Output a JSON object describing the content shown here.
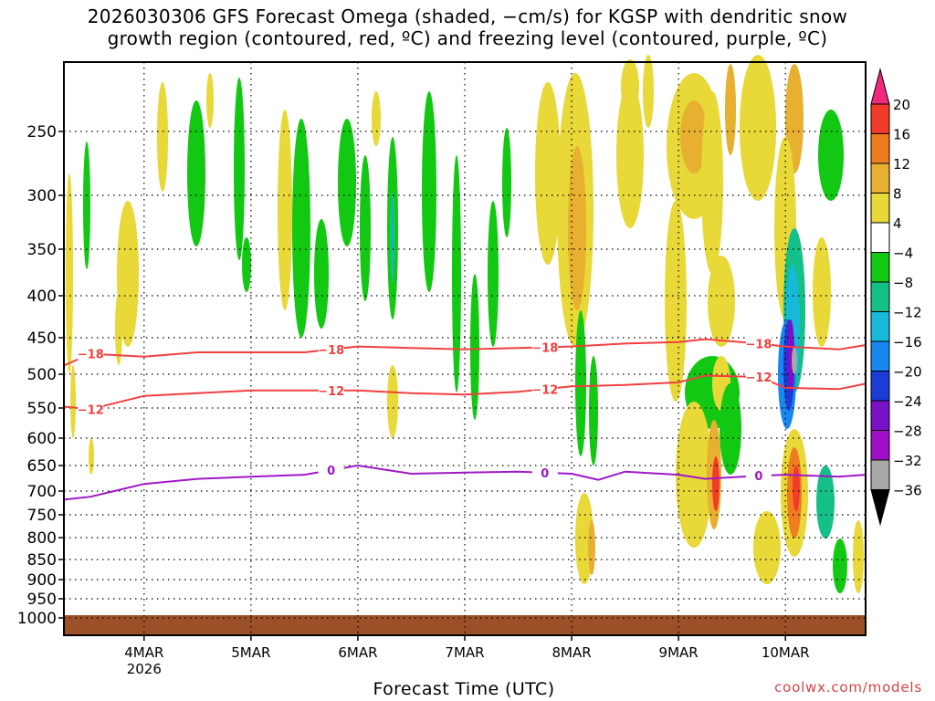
{
  "title": {
    "line1": "2026030306 GFS Forecast Omega (shaded, −cm/s) for KGSP with dendritic snow",
    "line2": "growth region (contoured, red, ºC) and freezing level (contoured, purple, ºC)"
  },
  "credit": "coolwx.com/models",
  "chart_data": {
    "type": "heatmap",
    "xlabel": "Forecast Time (UTC)",
    "x_range_days": [
      "2026-03-03T06",
      "2026-03-10T18"
    ],
    "x_ticks": [
      {
        "label": "4MAR",
        "sub": "2026",
        "value": "2026-03-04T00"
      },
      {
        "label": "5MAR",
        "sub": "",
        "value": "2026-03-05T00"
      },
      {
        "label": "6MAR",
        "sub": "",
        "value": "2026-03-06T00"
      },
      {
        "label": "7MAR",
        "sub": "",
        "value": "2026-03-07T00"
      },
      {
        "label": "8MAR",
        "sub": "",
        "value": "2026-03-08T00"
      },
      {
        "label": "9MAR",
        "sub": "",
        "value": "2026-03-09T00"
      },
      {
        "label": "10MAR",
        "sub": "",
        "value": "2026-03-10T00"
      }
    ],
    "y_axis": "pressure (hPa), reversed",
    "y_ticks": [
      250,
      300,
      350,
      400,
      450,
      500,
      550,
      600,
      650,
      700,
      750,
      800,
      850,
      900,
      950,
      1000
    ],
    "grid": true,
    "colorbar": {
      "labels": [
        "20",
        "16",
        "12",
        "8",
        "4",
        "−4",
        "−8",
        "−12",
        "−16",
        "−20",
        "−24",
        "−28",
        "−32",
        "−36"
      ],
      "colors": [
        "#f0287e",
        "#f03c28",
        "#f07c20",
        "#e8b030",
        "#e8d838",
        "#ffffff",
        "#12c812",
        "#14c088",
        "#18b8d8",
        "#1888f0",
        "#1c3cd8",
        "#7a10c8",
        "#a010c8",
        "#a8a8a8",
        "#000000"
      ]
    },
    "contours": [
      {
        "label": "−18",
        "color": "#f04040",
        "points": [
          [
            "2026-03-03T06",
            488
          ],
          [
            "2026-03-03T12",
            472
          ],
          [
            "2026-03-04T00",
            476
          ],
          [
            "2026-03-04T12",
            470
          ],
          [
            "2026-03-05T00",
            470
          ],
          [
            "2026-03-05T12",
            470
          ],
          [
            "2026-03-06T00",
            462
          ],
          [
            "2026-03-06T12",
            464
          ],
          [
            "2026-03-07T00",
            466
          ],
          [
            "2026-03-07T12",
            464
          ],
          [
            "2026-03-08T00",
            462
          ],
          [
            "2026-03-08T12",
            458
          ],
          [
            "2026-03-09T00",
            456
          ],
          [
            "2026-03-09T06",
            452
          ],
          [
            "2026-03-09T18",
            458
          ],
          [
            "2026-03-10T00",
            462
          ],
          [
            "2026-03-10T12",
            466
          ],
          [
            "2026-03-10T18",
            460
          ]
        ],
        "label_at": [
          "2026-03-03T12",
          "2026-03-05T18",
          "2026-03-07T18",
          "2026-03-09T18"
        ]
      },
      {
        "label": "−12",
        "color": "#f04040",
        "points": [
          [
            "2026-03-03T06",
            548
          ],
          [
            "2026-03-03T12",
            552
          ],
          [
            "2026-03-04T00",
            532
          ],
          [
            "2026-03-04T12",
            528
          ],
          [
            "2026-03-05T00",
            524
          ],
          [
            "2026-03-05T12",
            524
          ],
          [
            "2026-03-06T00",
            524
          ],
          [
            "2026-03-06T12",
            528
          ],
          [
            "2026-03-07T00",
            530
          ],
          [
            "2026-03-07T12",
            526
          ],
          [
            "2026-03-08T00",
            518
          ],
          [
            "2026-03-08T12",
            516
          ],
          [
            "2026-03-09T00",
            512
          ],
          [
            "2026-03-09T06",
            502
          ],
          [
            "2026-03-09T18",
            504
          ],
          [
            "2026-03-10T00",
            520
          ],
          [
            "2026-03-10T12",
            522
          ],
          [
            "2026-03-10T18",
            514
          ]
        ],
        "label_at": [
          "2026-03-03T12",
          "2026-03-05T18",
          "2026-03-07T18",
          "2026-03-09T18"
        ]
      },
      {
        "label": "0",
        "color": "#a018c8",
        "points": [
          [
            "2026-03-03T06",
            718
          ],
          [
            "2026-03-03T12",
            712
          ],
          [
            "2026-03-04T00",
            686
          ],
          [
            "2026-03-04T12",
            676
          ],
          [
            "2026-03-05T00",
            672
          ],
          [
            "2026-03-05T12",
            668
          ],
          [
            "2026-03-06T00",
            650
          ],
          [
            "2026-03-06T06",
            658
          ],
          [
            "2026-03-06T12",
            666
          ],
          [
            "2026-03-07T00",
            664
          ],
          [
            "2026-03-07T12",
            662
          ],
          [
            "2026-03-08T00",
            666
          ],
          [
            "2026-03-08T06",
            678
          ],
          [
            "2026-03-08T12",
            662
          ],
          [
            "2026-03-09T00",
            668
          ],
          [
            "2026-03-09T06",
            676
          ],
          [
            "2026-03-09T18",
            670
          ],
          [
            "2026-03-10T00",
            668
          ],
          [
            "2026-03-10T12",
            672
          ],
          [
            "2026-03-10T18",
            668
          ]
        ],
        "label_at": [
          "2026-03-05T18",
          "2026-03-07T18",
          "2026-03-09T18"
        ]
      }
    ],
    "surface": {
      "color": "#9c5028",
      "pressure": 1000
    }
  }
}
